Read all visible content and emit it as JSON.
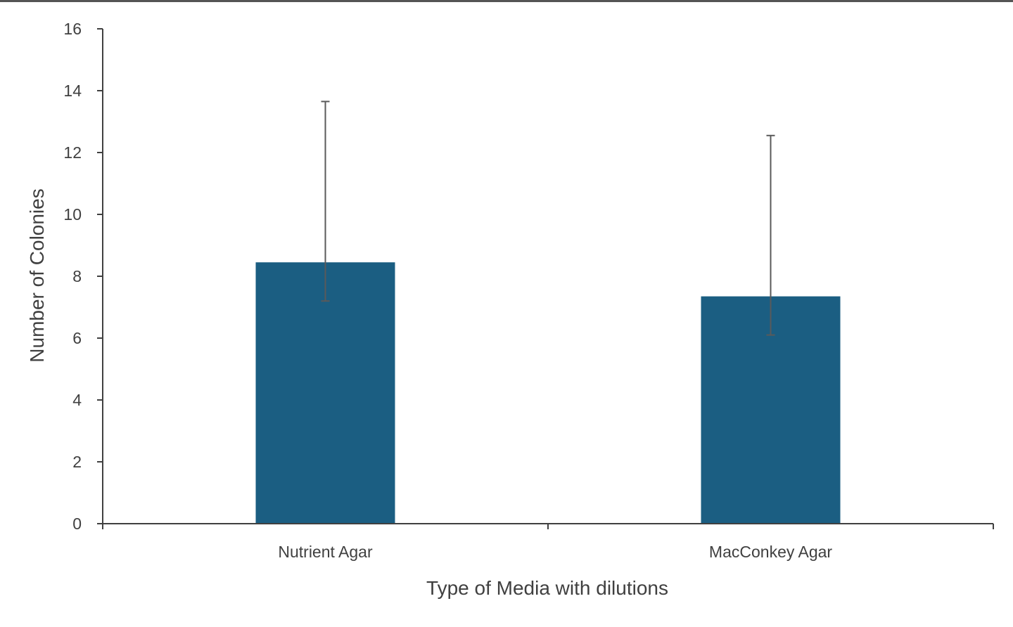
{
  "chart_data": {
    "type": "bar",
    "title": "",
    "xlabel": "Type of Media with dilutions",
    "ylabel": "Number of Colonies",
    "categories": [
      "Nutrient Agar",
      "MacConkey Agar"
    ],
    "series": [
      {
        "values": [
          8.45,
          7.35
        ],
        "error_plus": [
          5.2,
          5.2
        ],
        "error_minus": [
          1.25,
          1.25
        ],
        "color": "#1b5e82"
      }
    ],
    "ylim": [
      0,
      16
    ],
    "yticks": [
      0,
      2,
      4,
      6,
      8,
      10,
      12,
      14,
      16
    ],
    "grid": false,
    "legend": "none"
  }
}
